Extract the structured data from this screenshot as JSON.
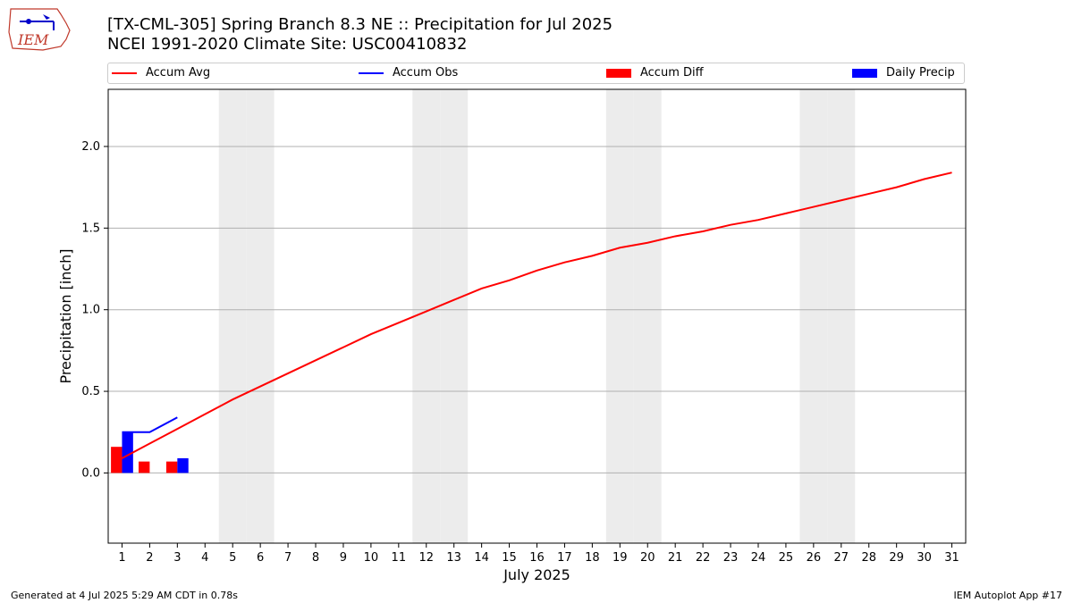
{
  "header": {
    "logo_text": "IEM",
    "title_line1": "[TX-CML-305] Spring Branch 8.3 NE :: Precipitation for Jul 2025",
    "title_line2": "NCEI 1991-2020 Climate Site: USC00410832"
  },
  "footer": {
    "left": "Generated at 4 Jul 2025 5:29 AM CDT in 0.78s",
    "right": "IEM Autoplot App #17"
  },
  "colors": {
    "avg": "#ff0000",
    "obs": "#0000ff",
    "diff": "#ff0000",
    "daily": "#0000ff",
    "weekend": "#ececec",
    "grid": "#b0b0b0"
  },
  "chart_data": {
    "type": "bar",
    "xlabel": "July 2025",
    "ylabel": "Precipitation [inch]",
    "x": [
      1,
      2,
      3,
      4,
      5,
      6,
      7,
      8,
      9,
      10,
      11,
      12,
      13,
      14,
      15,
      16,
      17,
      18,
      19,
      20,
      21,
      22,
      23,
      24,
      25,
      26,
      27,
      28,
      29,
      30,
      31
    ],
    "xlim": [
      0.5,
      31.5
    ],
    "ylim": [
      -0.43,
      2.35
    ],
    "yticks": [
      "0.0",
      "0.5",
      "1.0",
      "1.5",
      "2.0"
    ],
    "ytick_values": [
      0.0,
      0.5,
      1.0,
      1.5,
      2.0
    ],
    "grid": true,
    "legend_placement": "top",
    "weekend_days": [
      5,
      6,
      12,
      13,
      19,
      20,
      26,
      27
    ],
    "series": [
      {
        "name": "Accum Avg",
        "kind": "line",
        "color": "#ff0000",
        "x": [
          1,
          2,
          3,
          4,
          5,
          6,
          7,
          8,
          9,
          10,
          11,
          12,
          13,
          14,
          15,
          16,
          17,
          18,
          19,
          20,
          21,
          22,
          23,
          24,
          25,
          26,
          27,
          28,
          29,
          30,
          31
        ],
        "values": [
          0.09,
          0.18,
          0.27,
          0.36,
          0.45,
          0.53,
          0.61,
          0.69,
          0.77,
          0.85,
          0.92,
          0.99,
          1.06,
          1.13,
          1.18,
          1.24,
          1.29,
          1.33,
          1.38,
          1.41,
          1.45,
          1.48,
          1.52,
          1.55,
          1.59,
          1.63,
          1.67,
          1.71,
          1.75,
          1.8,
          1.84
        ]
      },
      {
        "name": "Accum Obs",
        "kind": "line",
        "color": "#0000ff",
        "x": [
          1,
          2,
          3
        ],
        "values": [
          0.25,
          0.25,
          0.34
        ]
      },
      {
        "name": "Accum Diff",
        "kind": "bar",
        "color": "#ff0000",
        "x": [
          1,
          2,
          3
        ],
        "values": [
          0.16,
          0.07,
          0.07
        ]
      },
      {
        "name": "Daily Precip",
        "kind": "bar",
        "color": "#0000ff",
        "x": [
          1,
          2,
          3
        ],
        "values": [
          0.25,
          0.0,
          0.09
        ]
      }
    ]
  }
}
